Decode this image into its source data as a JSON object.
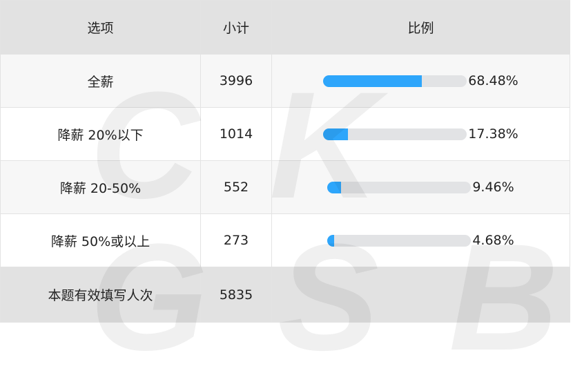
{
  "header": {
    "option": "选项",
    "count": "小计",
    "ratio": "比例"
  },
  "rows": [
    {
      "option": "全薪",
      "count": "3996",
      "percent": "68.48%",
      "value": 68.48
    },
    {
      "option": "降薪 20%以下",
      "count": "1014",
      "percent": "17.38%",
      "value": 17.38
    },
    {
      "option": "降薪 20-50%",
      "count": "552",
      "percent": "9.46%",
      "value": 9.46
    },
    {
      "option": "降薪 50%或以上",
      "count": "273",
      "percent": "4.68%",
      "value": 4.68
    }
  ],
  "footer": {
    "label": "本题有效填写人次",
    "count": "5835"
  },
  "watermark": "CKGSB",
  "colors": {
    "fill": "#2ea6fb",
    "track": "#e2e3e5"
  }
}
